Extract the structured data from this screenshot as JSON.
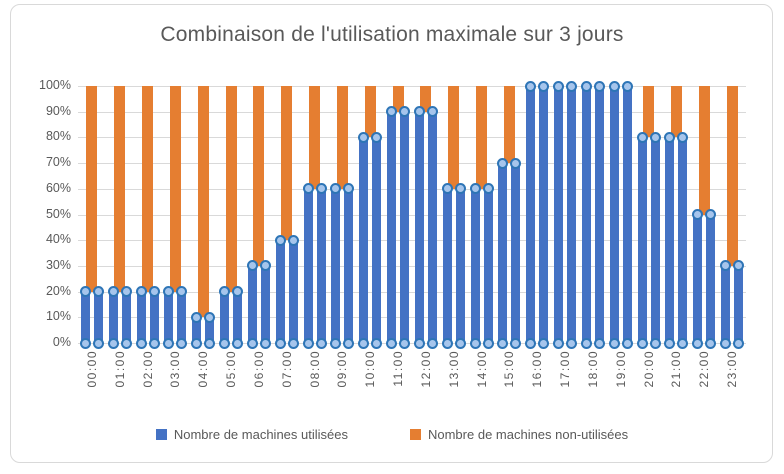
{
  "chart_data": {
    "type": "stacked-bar",
    "title": "Combinaison de l'utilisation maximale sur 3 jours",
    "categories": [
      "00:00",
      "01:00",
      "02:00",
      "03:00",
      "04:00",
      "05:00",
      "06:00",
      "07:00",
      "08:00",
      "09:00",
      "10:00",
      "11:00",
      "12:00",
      "13:00",
      "14:00",
      "15:00",
      "16:00",
      "17:00",
      "18:00",
      "19:00",
      "20:00",
      "21:00",
      "22:00",
      "23:00"
    ],
    "series": [
      {
        "name": "Nombre de machines utilisées",
        "color": "#4472C4",
        "values": [
          20,
          20,
          20,
          20,
          10,
          20,
          30,
          40,
          60,
          60,
          80,
          90,
          90,
          60,
          60,
          70,
          100,
          100,
          100,
          100,
          80,
          80,
          50,
          30
        ]
      },
      {
        "name": "Nombre de machines non-utilisées",
        "color": "#E57E31",
        "values": [
          80,
          80,
          80,
          80,
          90,
          80,
          70,
          60,
          40,
          40,
          20,
          10,
          10,
          40,
          40,
          30,
          0,
          0,
          0,
          0,
          20,
          20,
          50,
          70
        ]
      }
    ],
    "y_ticks": [
      "0%",
      "10%",
      "20%",
      "30%",
      "40%",
      "50%",
      "60%",
      "70%",
      "80%",
      "90%",
      "100%"
    ],
    "ylim": [
      0,
      100
    ],
    "grid": true,
    "legend_position": "bottom",
    "marker_style": {
      "fill": "#A6C5EC",
      "border": "#2E75B6"
    }
  },
  "colors": {
    "grid": "#D9D9D9",
    "text_gray": "#595959",
    "frame_border": "#D9D9D9",
    "background": "#FFFFFF"
  }
}
